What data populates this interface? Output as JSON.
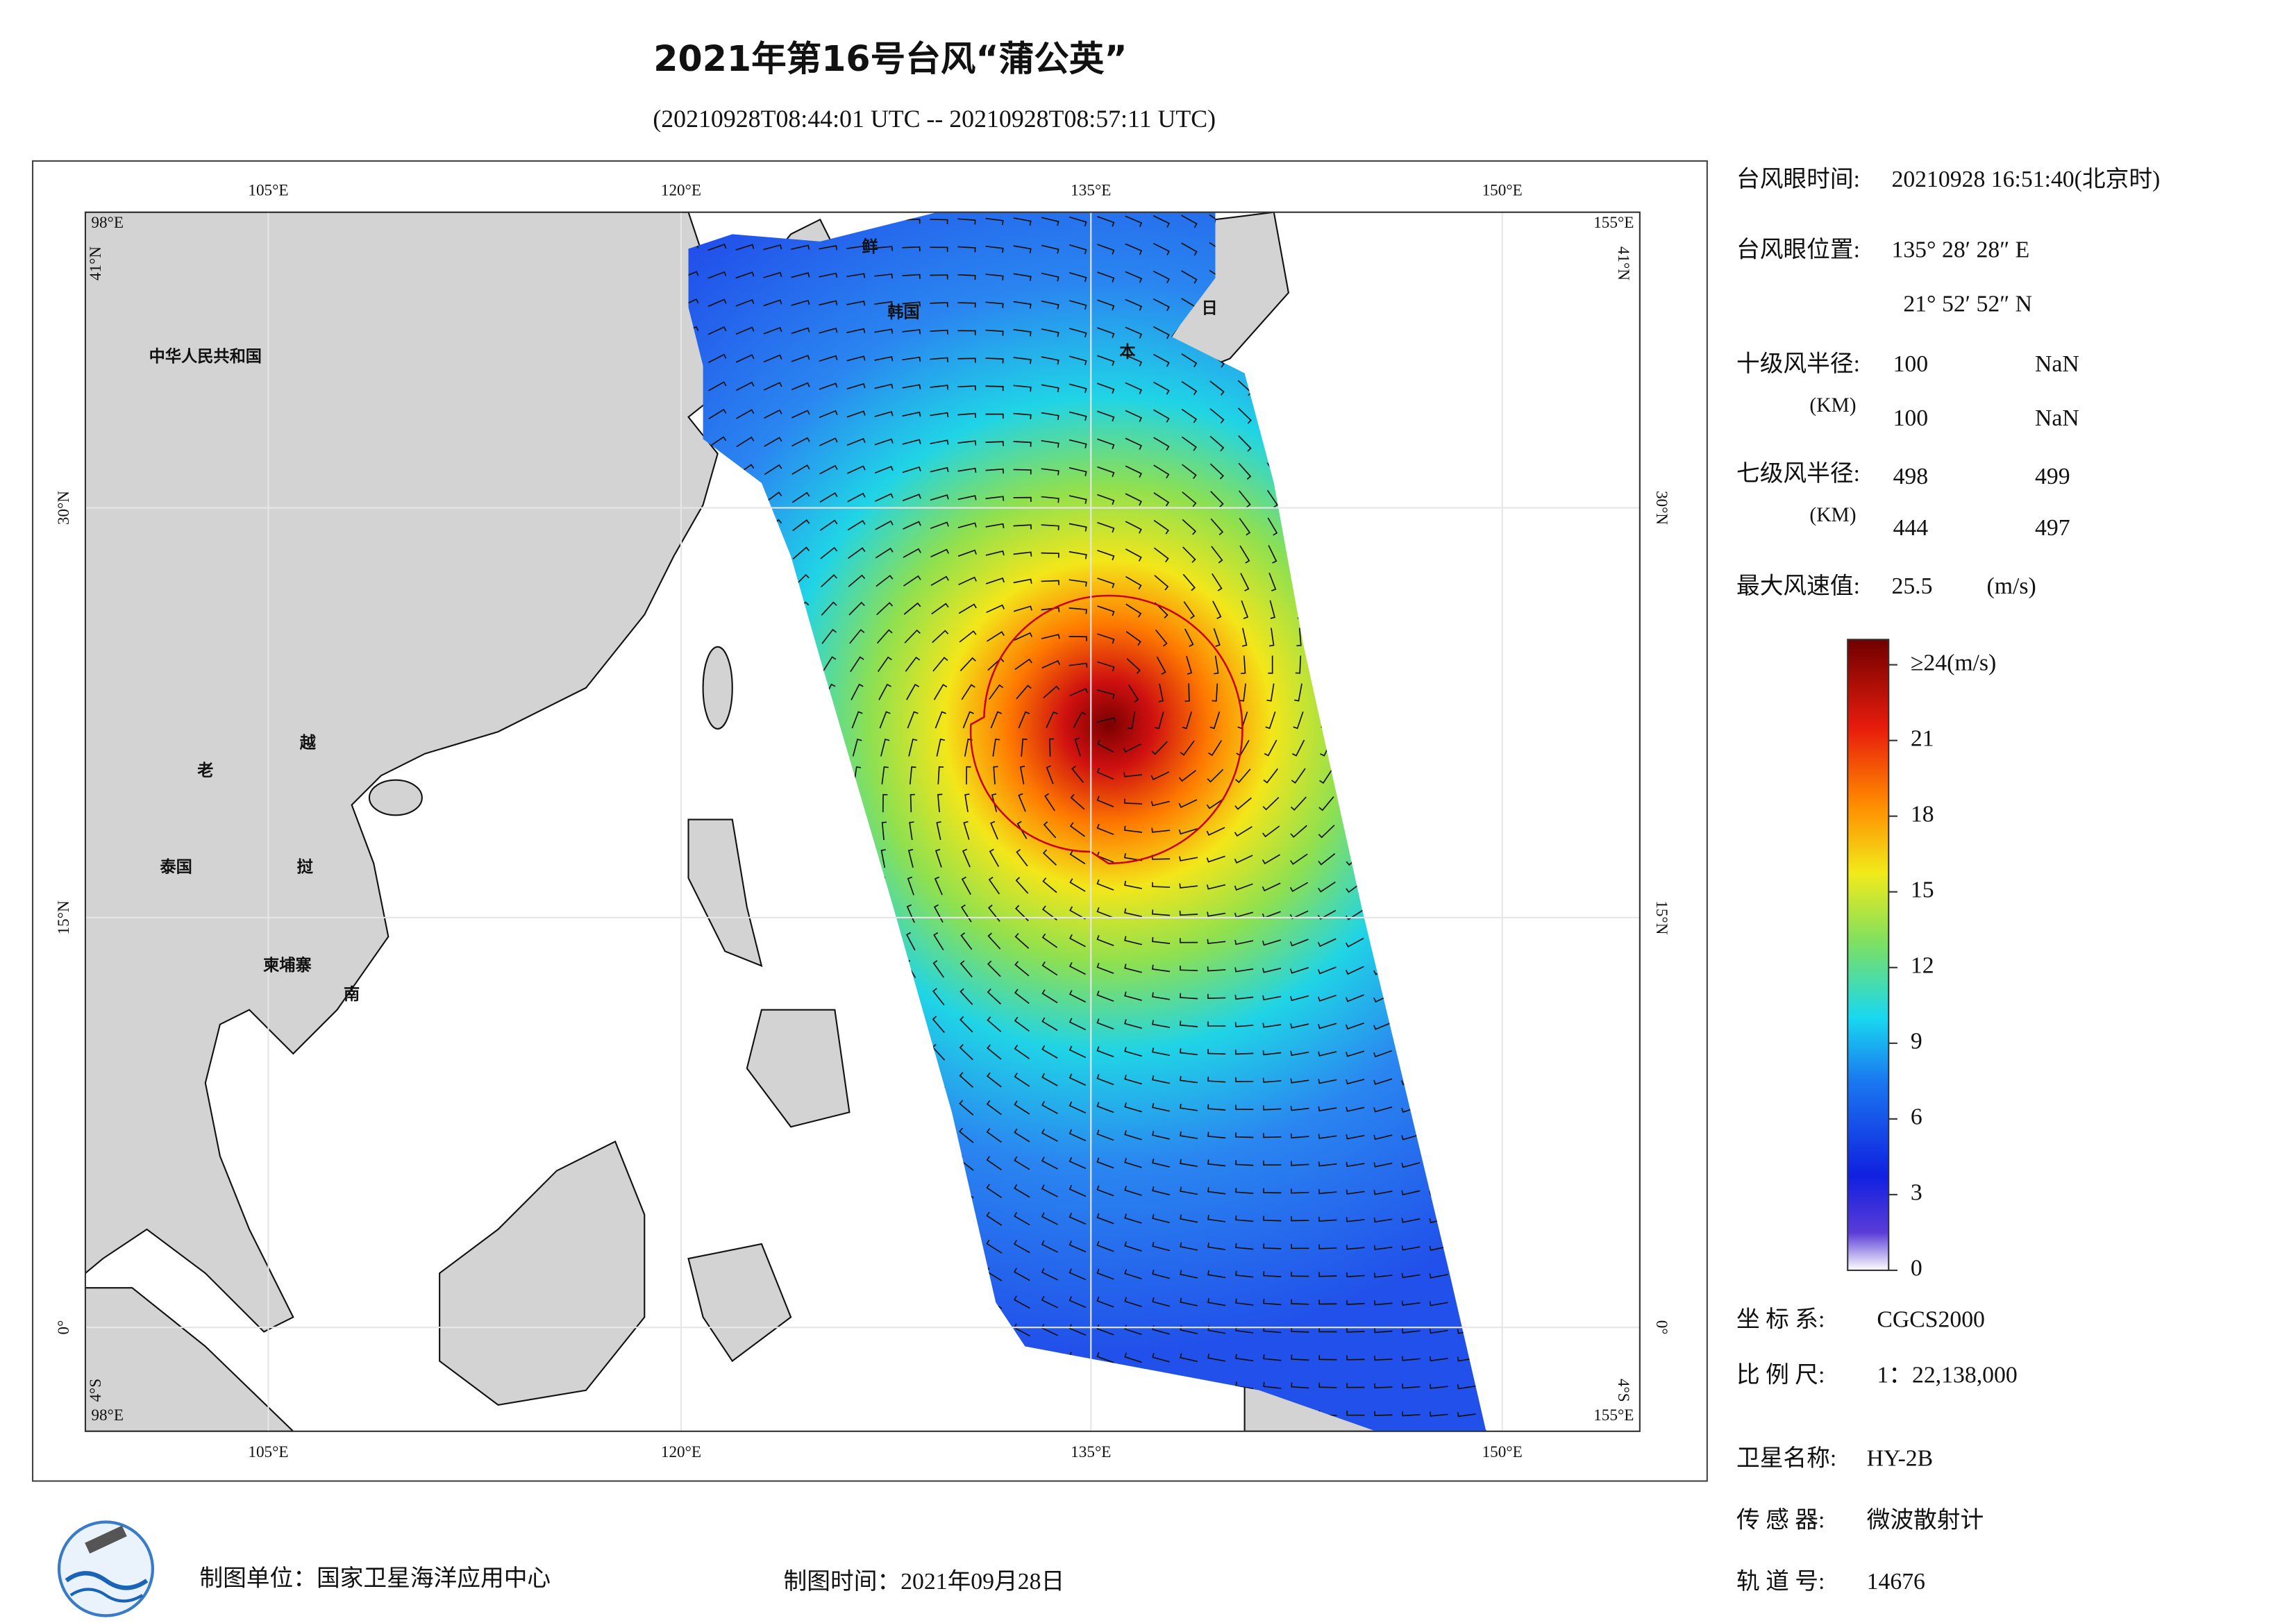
{
  "header": {
    "title": "2021年第16号台风“蒲公英”",
    "subtitle": "(20210928T08:44:01 UTC -- 20210928T08:57:11 UTC)"
  },
  "map": {
    "lon_ticks": [
      "105°E",
      "120°E",
      "135°E",
      "150°E"
    ],
    "lat_ticks": [
      "30°N",
      "15°N",
      "0°"
    ],
    "corners": {
      "west": "98°E",
      "north": "41°N",
      "east": "155°E",
      "south": "4°S"
    },
    "places": [
      "中华人民共和国",
      "老",
      "越",
      "泰国",
      "挝",
      "柬埔寨",
      "南",
      "鲜",
      "韩国",
      "日",
      "本"
    ]
  },
  "info": {
    "eye_time_label": "台风眼时间:",
    "eye_time": "20210928 16:51:40(北京时)",
    "eye_pos_label": "台风眼位置:",
    "eye_lon": "135° 28′ 28″ E",
    "eye_lat": "21° 52′ 52″ N",
    "r10_label": "十级风半径:",
    "r10_unit": "(KM)",
    "r10": [
      100,
      "NaN",
      100,
      "NaN"
    ],
    "r7_label": "七级风半径:",
    "r7_unit": "(KM)",
    "r7": [
      498,
      499,
      444,
      497
    ],
    "vmax_label": "最大风速值:",
    "vmax": 25.5,
    "vmax_unit": "(m/s)",
    "crs_label": "坐 标 系:",
    "crs": "CGCS2000",
    "scale_label": "比 例 尺:",
    "scale": "1：22,138,000",
    "sat_label": "卫星名称:",
    "sat": "HY-2B",
    "sensor_label": "传 感 器:",
    "sensor": "微波散射计",
    "orbit_label": "轨 道 号:",
    "orbit": 14676
  },
  "colorbar": {
    "lim": [
      0,
      25
    ],
    "ticks": [
      0,
      3,
      6,
      9,
      12,
      15,
      18,
      21,
      {
        "value": 24,
        "label": "≥24(m/s)"
      }
    ]
  },
  "footer": {
    "unit": "制图单位：国家卫星海洋应用中心",
    "date": "制图时间：2021年09月28日"
  }
}
